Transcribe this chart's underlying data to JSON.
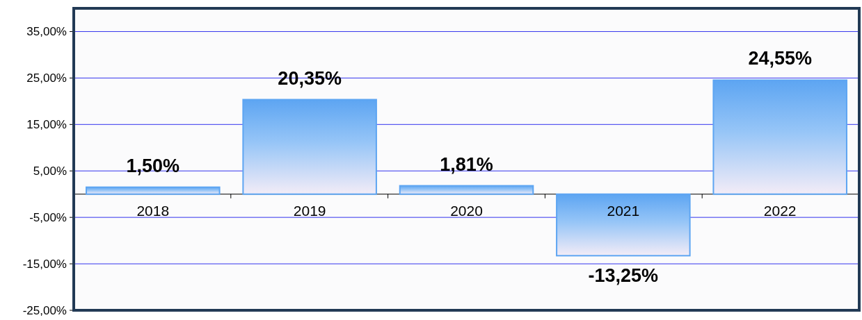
{
  "chart_data": {
    "type": "bar",
    "categories": [
      "2018",
      "2019",
      "2020",
      "2021",
      "2022"
    ],
    "values": [
      1.5,
      20.35,
      1.81,
      -13.25,
      24.55
    ],
    "value_labels": [
      "1,50%",
      "20,35%",
      "1,81%",
      "-13,25%",
      "24,55%"
    ],
    "color": "#5da5f2",
    "ylim": [
      -25,
      40
    ],
    "yticks": [
      {
        "value": -25,
        "label": "-25,00%"
      },
      {
        "value": -15,
        "label": "-15,00%"
      },
      {
        "value": -5,
        "label": "-5,00%"
      },
      {
        "value": 5,
        "label": "5,00%"
      },
      {
        "value": 15,
        "label": "15,00%"
      },
      {
        "value": 25,
        "label": "25,00%"
      },
      {
        "value": 35,
        "label": "35,00%"
      }
    ],
    "grid": "y"
  }
}
